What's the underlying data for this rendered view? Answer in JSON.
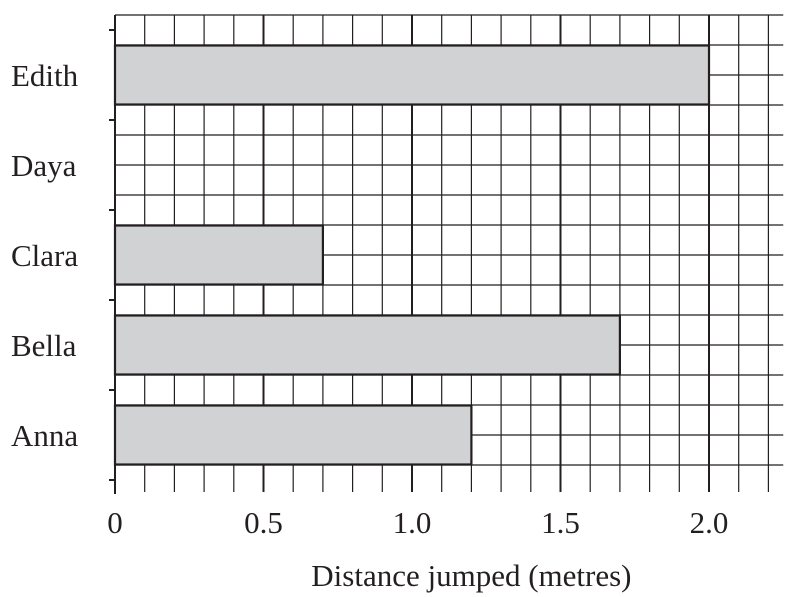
{
  "chart_data": {
    "type": "bar",
    "orientation": "horizontal",
    "categories": [
      "Edith",
      "Daya",
      "Clara",
      "Bella",
      "Anna"
    ],
    "values": [
      2.0,
      null,
      0.7,
      1.7,
      1.2
    ],
    "xlabel": "Distance jumped (metres)",
    "ylabel": "",
    "xlim": [
      0,
      2.25
    ],
    "xticks": [
      0,
      0.5,
      1.0,
      1.5,
      2.0
    ],
    "xtick_labels": [
      "0",
      "0.5",
      "1.0",
      "1.5",
      "2.0"
    ],
    "grid": true,
    "minor_grid_step": 0.1,
    "colors": {
      "bar_fill": "#d1d2d4",
      "line": "#231f20"
    }
  }
}
